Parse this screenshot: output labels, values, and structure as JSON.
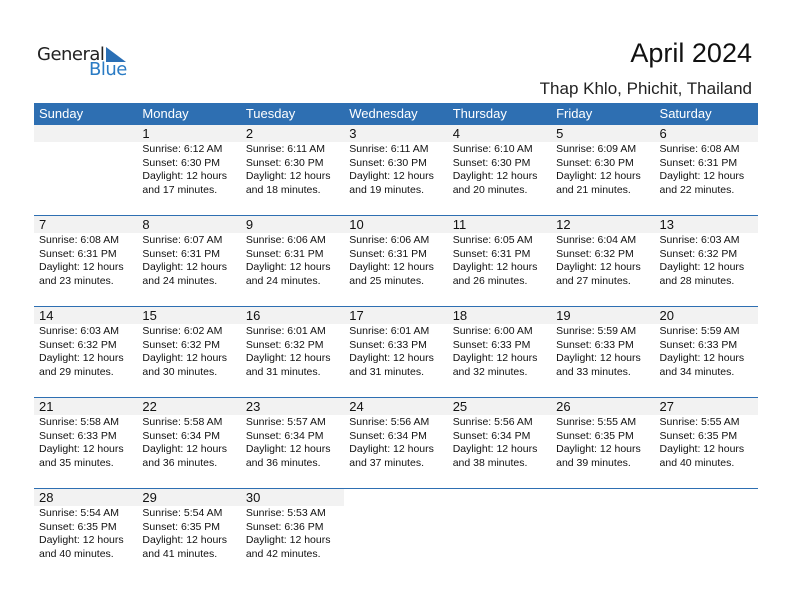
{
  "logo": {
    "line1": "General",
    "line2": "Blue"
  },
  "title": "April 2024",
  "location": "Thap Khlo, Phichit, Thailand",
  "weekdays": [
    "Sunday",
    "Monday",
    "Tuesday",
    "Wednesday",
    "Thursday",
    "Friday",
    "Saturday"
  ],
  "colors": {
    "header": "#2e6fb2",
    "day_band": "#f2f2f2",
    "brand_blue": "#2a7bc4"
  },
  "weeks": [
    [
      null,
      {
        "day": "1",
        "sunrise": "Sunrise: 6:12 AM",
        "sunset": "Sunset: 6:30 PM",
        "daylight1": "Daylight: 12 hours",
        "daylight2": "and 17 minutes."
      },
      {
        "day": "2",
        "sunrise": "Sunrise: 6:11 AM",
        "sunset": "Sunset: 6:30 PM",
        "daylight1": "Daylight: 12 hours",
        "daylight2": "and 18 minutes."
      },
      {
        "day": "3",
        "sunrise": "Sunrise: 6:11 AM",
        "sunset": "Sunset: 6:30 PM",
        "daylight1": "Daylight: 12 hours",
        "daylight2": "and 19 minutes."
      },
      {
        "day": "4",
        "sunrise": "Sunrise: 6:10 AM",
        "sunset": "Sunset: 6:30 PM",
        "daylight1": "Daylight: 12 hours",
        "daylight2": "and 20 minutes."
      },
      {
        "day": "5",
        "sunrise": "Sunrise: 6:09 AM",
        "sunset": "Sunset: 6:30 PM",
        "daylight1": "Daylight: 12 hours",
        "daylight2": "and 21 minutes."
      },
      {
        "day": "6",
        "sunrise": "Sunrise: 6:08 AM",
        "sunset": "Sunset: 6:31 PM",
        "daylight1": "Daylight: 12 hours",
        "daylight2": "and 22 minutes."
      }
    ],
    [
      {
        "day": "7",
        "sunrise": "Sunrise: 6:08 AM",
        "sunset": "Sunset: 6:31 PM",
        "daylight1": "Daylight: 12 hours",
        "daylight2": "and 23 minutes."
      },
      {
        "day": "8",
        "sunrise": "Sunrise: 6:07 AM",
        "sunset": "Sunset: 6:31 PM",
        "daylight1": "Daylight: 12 hours",
        "daylight2": "and 24 minutes."
      },
      {
        "day": "9",
        "sunrise": "Sunrise: 6:06 AM",
        "sunset": "Sunset: 6:31 PM",
        "daylight1": "Daylight: 12 hours",
        "daylight2": "and 24 minutes."
      },
      {
        "day": "10",
        "sunrise": "Sunrise: 6:06 AM",
        "sunset": "Sunset: 6:31 PM",
        "daylight1": "Daylight: 12 hours",
        "daylight2": "and 25 minutes."
      },
      {
        "day": "11",
        "sunrise": "Sunrise: 6:05 AM",
        "sunset": "Sunset: 6:31 PM",
        "daylight1": "Daylight: 12 hours",
        "daylight2": "and 26 minutes."
      },
      {
        "day": "12",
        "sunrise": "Sunrise: 6:04 AM",
        "sunset": "Sunset: 6:32 PM",
        "daylight1": "Daylight: 12 hours",
        "daylight2": "and 27 minutes."
      },
      {
        "day": "13",
        "sunrise": "Sunrise: 6:03 AM",
        "sunset": "Sunset: 6:32 PM",
        "daylight1": "Daylight: 12 hours",
        "daylight2": "and 28 minutes."
      }
    ],
    [
      {
        "day": "14",
        "sunrise": "Sunrise: 6:03 AM",
        "sunset": "Sunset: 6:32 PM",
        "daylight1": "Daylight: 12 hours",
        "daylight2": "and 29 minutes."
      },
      {
        "day": "15",
        "sunrise": "Sunrise: 6:02 AM",
        "sunset": "Sunset: 6:32 PM",
        "daylight1": "Daylight: 12 hours",
        "daylight2": "and 30 minutes."
      },
      {
        "day": "16",
        "sunrise": "Sunrise: 6:01 AM",
        "sunset": "Sunset: 6:32 PM",
        "daylight1": "Daylight: 12 hours",
        "daylight2": "and 31 minutes."
      },
      {
        "day": "17",
        "sunrise": "Sunrise: 6:01 AM",
        "sunset": "Sunset: 6:33 PM",
        "daylight1": "Daylight: 12 hours",
        "daylight2": "and 31 minutes."
      },
      {
        "day": "18",
        "sunrise": "Sunrise: 6:00 AM",
        "sunset": "Sunset: 6:33 PM",
        "daylight1": "Daylight: 12 hours",
        "daylight2": "and 32 minutes."
      },
      {
        "day": "19",
        "sunrise": "Sunrise: 5:59 AM",
        "sunset": "Sunset: 6:33 PM",
        "daylight1": "Daylight: 12 hours",
        "daylight2": "and 33 minutes."
      },
      {
        "day": "20",
        "sunrise": "Sunrise: 5:59 AM",
        "sunset": "Sunset: 6:33 PM",
        "daylight1": "Daylight: 12 hours",
        "daylight2": "and 34 minutes."
      }
    ],
    [
      {
        "day": "21",
        "sunrise": "Sunrise: 5:58 AM",
        "sunset": "Sunset: 6:33 PM",
        "daylight1": "Daylight: 12 hours",
        "daylight2": "and 35 minutes."
      },
      {
        "day": "22",
        "sunrise": "Sunrise: 5:58 AM",
        "sunset": "Sunset: 6:34 PM",
        "daylight1": "Daylight: 12 hours",
        "daylight2": "and 36 minutes."
      },
      {
        "day": "23",
        "sunrise": "Sunrise: 5:57 AM",
        "sunset": "Sunset: 6:34 PM",
        "daylight1": "Daylight: 12 hours",
        "daylight2": "and 36 minutes."
      },
      {
        "day": "24",
        "sunrise": "Sunrise: 5:56 AM",
        "sunset": "Sunset: 6:34 PM",
        "daylight1": "Daylight: 12 hours",
        "daylight2": "and 37 minutes."
      },
      {
        "day": "25",
        "sunrise": "Sunrise: 5:56 AM",
        "sunset": "Sunset: 6:34 PM",
        "daylight1": "Daylight: 12 hours",
        "daylight2": "and 38 minutes."
      },
      {
        "day": "26",
        "sunrise": "Sunrise: 5:55 AM",
        "sunset": "Sunset: 6:35 PM",
        "daylight1": "Daylight: 12 hours",
        "daylight2": "and 39 minutes."
      },
      {
        "day": "27",
        "sunrise": "Sunrise: 5:55 AM",
        "sunset": "Sunset: 6:35 PM",
        "daylight1": "Daylight: 12 hours",
        "daylight2": "and 40 minutes."
      }
    ],
    [
      {
        "day": "28",
        "sunrise": "Sunrise: 5:54 AM",
        "sunset": "Sunset: 6:35 PM",
        "daylight1": "Daylight: 12 hours",
        "daylight2": "and 40 minutes."
      },
      {
        "day": "29",
        "sunrise": "Sunrise: 5:54 AM",
        "sunset": "Sunset: 6:35 PM",
        "daylight1": "Daylight: 12 hours",
        "daylight2": "and 41 minutes."
      },
      {
        "day": "30",
        "sunrise": "Sunrise: 5:53 AM",
        "sunset": "Sunset: 6:36 PM",
        "daylight1": "Daylight: 12 hours",
        "daylight2": "and 42 minutes."
      },
      null,
      null,
      null,
      null
    ]
  ]
}
